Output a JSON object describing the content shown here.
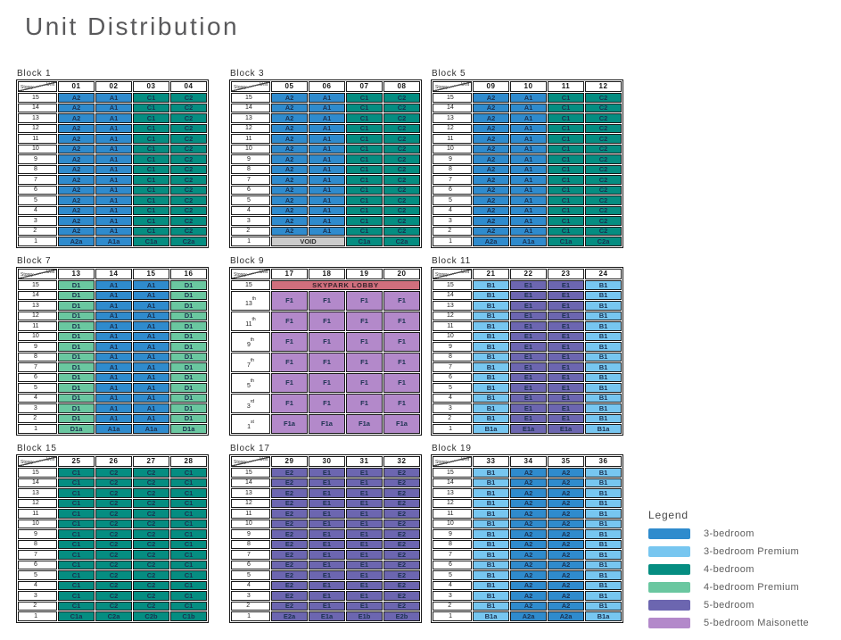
{
  "title": "Unit Distribution",
  "corner_label": {
    "top": "Unit",
    "bottom": "Storey"
  },
  "colors": {
    "bed3": "#2F8BCD",
    "bed3p": "#77C6F0",
    "bed4": "#058D81",
    "bed4p": "#6AC7A0",
    "bed5": "#6C66B0",
    "bed5m": "#B389CA",
    "skypark": "#D06F7D",
    "void": "#CBCBCB"
  },
  "legend": {
    "title": "Legend",
    "items": [
      {
        "label": "3-bedroom",
        "color": "bed3"
      },
      {
        "label": "3-bedroom Premium",
        "color": "bed3p"
      },
      {
        "label": "4-bedroom",
        "color": "bed4"
      },
      {
        "label": "4-bedroom Premium",
        "color": "bed4p"
      },
      {
        "label": "5-bedroom",
        "color": "bed5"
      },
      {
        "label": "5-bedroom Maisonette",
        "color": "bed5m"
      }
    ]
  },
  "chart_data": {
    "type": "table",
    "title": "Unit Distribution",
    "storeys_upper": [
      "15th",
      "14th",
      "13th",
      "12th",
      "11th",
      "10th",
      "9th",
      "8th",
      "7th",
      "6th",
      "5th",
      "4th",
      "3rd",
      "2nd"
    ],
    "storey_first": "1st",
    "blocks": [
      {
        "name": "Block 1",
        "units": [
          "01",
          "02",
          "03",
          "04"
        ],
        "upper": {
          "cells": [
            "A2",
            "A1",
            "C1",
            "C2"
          ],
          "colors": [
            "bed3",
            "bed3",
            "bed4",
            "bed4"
          ]
        },
        "first": {
          "cells": [
            "A2a",
            "A1a",
            "C1a",
            "C2a"
          ],
          "colors": [
            "bed3",
            "bed3",
            "bed4",
            "bed4"
          ],
          "spans": [
            1,
            1,
            1,
            1
          ]
        }
      },
      {
        "name": "Block 3",
        "units": [
          "05",
          "06",
          "07",
          "08"
        ],
        "upper": {
          "cells": [
            "A2",
            "A1",
            "C1",
            "C2"
          ],
          "colors": [
            "bed3",
            "bed3",
            "bed4",
            "bed4"
          ]
        },
        "first": {
          "cells": [
            "VOID",
            "C1a",
            "C2a"
          ],
          "colors": [
            "void",
            "bed4",
            "bed4"
          ],
          "spans": [
            2,
            1,
            1
          ]
        }
      },
      {
        "name": "Block 5",
        "units": [
          "09",
          "10",
          "11",
          "12"
        ],
        "upper": {
          "cells": [
            "A2",
            "A1",
            "C1",
            "C2"
          ],
          "colors": [
            "bed3",
            "bed3",
            "bed4",
            "bed4"
          ]
        },
        "first": {
          "cells": [
            "A2a",
            "A1a",
            "C1a",
            "C2a"
          ],
          "colors": [
            "bed3",
            "bed3",
            "bed4",
            "bed4"
          ],
          "spans": [
            1,
            1,
            1,
            1
          ]
        }
      },
      {
        "name": "Block 7",
        "units": [
          "13",
          "14",
          "15",
          "16"
        ],
        "upper": {
          "cells": [
            "D1",
            "A1",
            "A1",
            "D1"
          ],
          "colors": [
            "bed4p",
            "bed3",
            "bed3",
            "bed4p"
          ]
        },
        "first": {
          "cells": [
            "D1a",
            "A1a",
            "A1a",
            "D1a"
          ],
          "colors": [
            "bed4p",
            "bed3",
            "bed3",
            "bed4p"
          ],
          "spans": [
            1,
            1,
            1,
            1
          ]
        }
      },
      {
        "name": "Block 9",
        "units": [
          "17",
          "18",
          "19",
          "20"
        ],
        "maisonette": true,
        "top_row": {
          "storey": "15th",
          "label": "SKYPARK LOBBY",
          "color": "skypark"
        },
        "double_rows": [
          {
            "storey": "13th",
            "unit": "F1",
            "color": "bed5m"
          },
          {
            "storey": "11th",
            "unit": "F1",
            "color": "bed5m"
          },
          {
            "storey": "9th",
            "unit": "F1",
            "color": "bed5m"
          },
          {
            "storey": "7th",
            "unit": "F1",
            "color": "bed5m"
          },
          {
            "storey": "5th",
            "unit": "F1",
            "color": "bed5m"
          },
          {
            "storey": "3rd",
            "unit": "F1",
            "color": "bed5m"
          },
          {
            "storey": "1st",
            "unit": "F1a",
            "color": "bed5m"
          }
        ]
      },
      {
        "name": "Block 11",
        "units": [
          "21",
          "22",
          "23",
          "24"
        ],
        "upper": {
          "cells": [
            "B1",
            "E1",
            "E1",
            "B1"
          ],
          "colors": [
            "bed3p",
            "bed5",
            "bed5",
            "bed3p"
          ]
        },
        "first": {
          "cells": [
            "B1a",
            "E1a",
            "E1a",
            "B1a"
          ],
          "colors": [
            "bed3p",
            "bed5",
            "bed5",
            "bed3p"
          ],
          "spans": [
            1,
            1,
            1,
            1
          ]
        }
      },
      {
        "name": "Block 15",
        "units": [
          "25",
          "26",
          "27",
          "28"
        ],
        "upper": {
          "cells": [
            "C1",
            "C2",
            "C2",
            "C1"
          ],
          "colors": [
            "bed4",
            "bed4",
            "bed4",
            "bed4"
          ]
        },
        "first": {
          "cells": [
            "C1a",
            "C2a",
            "C2b",
            "C1b"
          ],
          "colors": [
            "bed4",
            "bed4",
            "bed4",
            "bed4"
          ],
          "spans": [
            1,
            1,
            1,
            1
          ]
        }
      },
      {
        "name": "Block 17",
        "units": [
          "29",
          "30",
          "31",
          "32"
        ],
        "upper": {
          "cells": [
            "E2",
            "E1",
            "E1",
            "E2"
          ],
          "colors": [
            "bed5",
            "bed5",
            "bed5",
            "bed5"
          ]
        },
        "first": {
          "cells": [
            "E2a",
            "E1a",
            "E1b",
            "E2b"
          ],
          "colors": [
            "bed5",
            "bed5",
            "bed5",
            "bed5"
          ],
          "spans": [
            1,
            1,
            1,
            1
          ]
        }
      },
      {
        "name": "Block 19",
        "units": [
          "33",
          "34",
          "35",
          "36"
        ],
        "upper": {
          "cells": [
            "B1",
            "A2",
            "A2",
            "B1"
          ],
          "colors": [
            "bed3p",
            "bed3",
            "bed3",
            "bed3p"
          ]
        },
        "first": {
          "cells": [
            "B1a",
            "A2a",
            "A2a",
            "B1a"
          ],
          "colors": [
            "bed3p",
            "bed3",
            "bed3",
            "bed3p"
          ],
          "spans": [
            1,
            1,
            1,
            1
          ]
        }
      }
    ]
  }
}
